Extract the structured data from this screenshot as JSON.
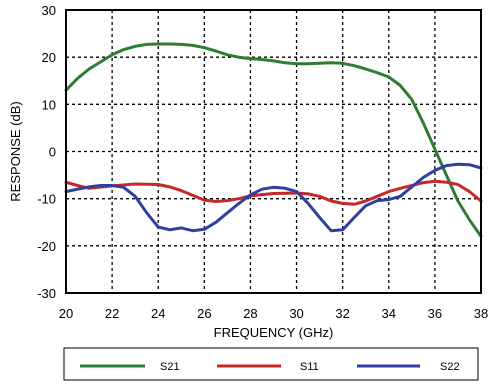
{
  "chart_data": {
    "type": "line",
    "xlabel": "FREQUENCY (GHz)",
    "ylabel": "RESPONSE (dB)",
    "xlim": [
      20,
      38
    ],
    "ylim": [
      -30,
      30
    ],
    "x_ticks": [
      20,
      22,
      24,
      26,
      28,
      30,
      32,
      34,
      36,
      38
    ],
    "y_ticks": [
      30,
      20,
      10,
      0,
      -10,
      -20,
      -30
    ],
    "grid": true,
    "legend_position": "bottom",
    "series": [
      {
        "name": "S21",
        "color": "#2e7d32",
        "points": [
          [
            20,
            13
          ],
          [
            20.5,
            15.5
          ],
          [
            21,
            17.5
          ],
          [
            21.5,
            19
          ],
          [
            22,
            20.5
          ],
          [
            22.5,
            21.6
          ],
          [
            23,
            22.3
          ],
          [
            23.5,
            22.7
          ],
          [
            24,
            22.8
          ],
          [
            24.5,
            22.8
          ],
          [
            25,
            22.7
          ],
          [
            25.5,
            22.5
          ],
          [
            26,
            22
          ],
          [
            26.5,
            21.3
          ],
          [
            27,
            20.5
          ],
          [
            27.5,
            20
          ],
          [
            28,
            19.7
          ],
          [
            28.5,
            19.5
          ],
          [
            29,
            19.2
          ],
          [
            29.5,
            18.8
          ],
          [
            30,
            18.6
          ],
          [
            30.5,
            18.6
          ],
          [
            31,
            18.7
          ],
          [
            31.5,
            18.8
          ],
          [
            32,
            18.7
          ],
          [
            32.5,
            18.2
          ],
          [
            33,
            17.5
          ],
          [
            33.5,
            16.7
          ],
          [
            34,
            15.8
          ],
          [
            34.5,
            14
          ],
          [
            35,
            11
          ],
          [
            35.5,
            6
          ],
          [
            36,
            0.5
          ],
          [
            36.5,
            -5
          ],
          [
            37,
            -10.5
          ],
          [
            37.5,
            -14.5
          ],
          [
            38,
            -18
          ]
        ]
      },
      {
        "name": "S11",
        "color": "#c62828",
        "points": [
          [
            20,
            -6.5
          ],
          [
            20.5,
            -7.2
          ],
          [
            21,
            -7.8
          ],
          [
            22,
            -7.3
          ],
          [
            23,
            -6.9
          ],
          [
            24,
            -7
          ],
          [
            24.5,
            -7.5
          ],
          [
            25,
            -8.3
          ],
          [
            25.5,
            -9.3
          ],
          [
            26,
            -10.3
          ],
          [
            26.5,
            -10.6
          ],
          [
            27,
            -10.4
          ],
          [
            27.5,
            -10
          ],
          [
            28,
            -9.4
          ],
          [
            29,
            -8.9
          ],
          [
            30,
            -8.8
          ],
          [
            30.5,
            -9
          ],
          [
            31,
            -9.5
          ],
          [
            31.5,
            -10.5
          ],
          [
            32,
            -11
          ],
          [
            32.5,
            -11.2
          ],
          [
            33,
            -10.5
          ],
          [
            33.5,
            -9.5
          ],
          [
            34,
            -8.5
          ],
          [
            34.5,
            -7.8
          ],
          [
            35,
            -7.2
          ],
          [
            35.5,
            -6.6
          ],
          [
            36,
            -6.3
          ],
          [
            36.5,
            -6.5
          ],
          [
            37,
            -7
          ],
          [
            37.5,
            -8.5
          ],
          [
            38,
            -10.5
          ]
        ]
      },
      {
        "name": "S22",
        "color": "#303f9f",
        "points": [
          [
            20,
            -8.5
          ],
          [
            20.5,
            -8
          ],
          [
            21,
            -7.5
          ],
          [
            21.5,
            -7.2
          ],
          [
            22,
            -7.2
          ],
          [
            22.5,
            -7.6
          ],
          [
            23,
            -9.5
          ],
          [
            23.5,
            -13
          ],
          [
            24,
            -16
          ],
          [
            24.5,
            -16.6
          ],
          [
            25,
            -16.2
          ],
          [
            25.5,
            -16.8
          ],
          [
            26,
            -16.5
          ],
          [
            26.5,
            -15
          ],
          [
            27,
            -13
          ],
          [
            27.5,
            -11
          ],
          [
            28,
            -9.2
          ],
          [
            28.5,
            -8
          ],
          [
            29,
            -7.6
          ],
          [
            29.5,
            -7.8
          ],
          [
            30,
            -8.5
          ],
          [
            30.5,
            -11
          ],
          [
            31,
            -14
          ],
          [
            31.5,
            -16.8
          ],
          [
            32,
            -16.6
          ],
          [
            32.5,
            -14
          ],
          [
            33,
            -11.5
          ],
          [
            33.5,
            -10.4
          ],
          [
            34,
            -10.2
          ],
          [
            34.5,
            -9.5
          ],
          [
            35,
            -7.5
          ],
          [
            35.5,
            -5.5
          ],
          [
            36,
            -4
          ],
          [
            36.5,
            -3
          ],
          [
            37,
            -2.7
          ],
          [
            37.5,
            -2.8
          ],
          [
            38,
            -3.5
          ]
        ]
      }
    ]
  }
}
